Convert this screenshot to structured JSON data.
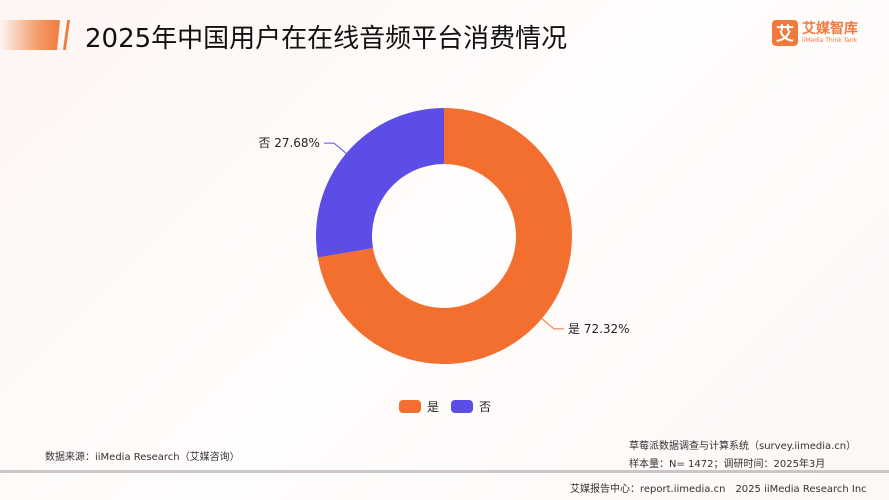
{
  "header": {
    "title": "2025年中国用户在在线音频平台消费情况",
    "logo_mark": "艾",
    "logo_name": "艾媒智库",
    "logo_sub": "iiMedia Think Tank"
  },
  "chart_data": {
    "type": "pie",
    "donut": true,
    "categories": [
      "是",
      "否"
    ],
    "values": [
      72.32,
      27.68
    ],
    "data_labels": [
      "是 72.32%",
      "否 27.68%"
    ],
    "colors": [
      "#f36f2f",
      "#5b4de6"
    ],
    "legend": {
      "placement": "bottom",
      "entries": [
        "是",
        "否"
      ]
    }
  },
  "footer": {
    "source": "数据来源：iiMedia Research（艾媒咨询）",
    "system": "草莓派数据调查与计算系统（survey.iimedia.cn）",
    "sample": "样本量：N= 1472；调研时间：2025年3月",
    "center": "艾媒报告中心：report.iimedia.cn　2025 iiMedia Research Inc"
  }
}
